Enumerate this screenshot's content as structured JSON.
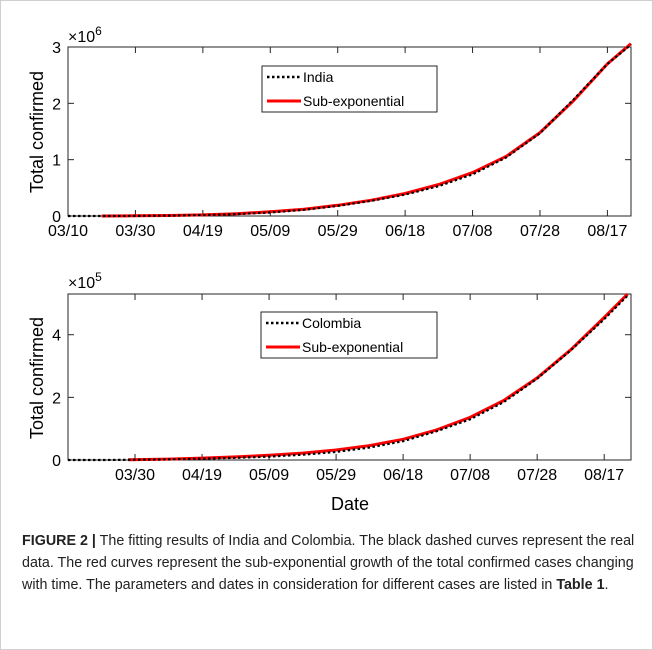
{
  "chart_data": [
    {
      "type": "line",
      "ylabel": "Total confirmed",
      "xlabel": "",
      "y_exponent_label": "×10",
      "y_exponent": "6",
      "ylim": [
        0,
        3
      ],
      "yticks": [
        0,
        1,
        2,
        3
      ],
      "xticks": [
        "03/10",
        "03/30",
        "04/19",
        "05/09",
        "05/29",
        "06/18",
        "07/08",
        "07/28",
        "08/17"
      ],
      "xlim_days": [
        0,
        167
      ],
      "legend_position": "top-center",
      "series": [
        {
          "name": "India",
          "style": "dotted",
          "color": "#000000",
          "x": [
            "03/10",
            "03/20",
            "03/30",
            "04/09",
            "04/19",
            "04/29",
            "05/09",
            "05/19",
            "05/29",
            "06/08",
            "06/18",
            "06/28",
            "07/08",
            "07/18",
            "07/28",
            "08/07",
            "08/17",
            "08/24"
          ],
          "y": [
            5e-05,
            0.0002,
            0.0011,
            0.0064,
            0.016,
            0.033,
            0.063,
            0.11,
            0.18,
            0.27,
            0.38,
            0.53,
            0.74,
            1.04,
            1.47,
            2.07,
            2.7,
            3.04
          ]
        },
        {
          "name": "Sub-exponential",
          "style": "solid",
          "color": "#ff0000",
          "x": [
            "03/20",
            "03/30",
            "04/09",
            "04/19",
            "04/29",
            "05/09",
            "05/19",
            "05/29",
            "06/08",
            "06/18",
            "06/28",
            "07/08",
            "07/18",
            "07/28",
            "08/07",
            "08/17",
            "08/24"
          ],
          "y": [
            0.0005,
            0.003,
            0.009,
            0.02,
            0.04,
            0.075,
            0.12,
            0.19,
            0.28,
            0.4,
            0.56,
            0.77,
            1.06,
            1.48,
            2.05,
            2.7,
            3.06
          ]
        }
      ]
    },
    {
      "type": "line",
      "ylabel": "Total confirmed",
      "xlabel": "Date",
      "y_exponent_label": "×10",
      "y_exponent": "5",
      "ylim": [
        0,
        5.3
      ],
      "yticks": [
        0,
        2,
        4
      ],
      "xticks": [
        "03/30",
        "04/19",
        "05/09",
        "05/29",
        "06/18",
        "07/08",
        "07/28",
        "08/17"
      ],
      "xlim_days": [
        0,
        168
      ],
      "legend_position": "top-center",
      "series": [
        {
          "name": "Colombia",
          "style": "dotted",
          "color": "#000000",
          "x": [
            "03/10",
            "03/20",
            "03/28",
            "04/09",
            "04/19",
            "04/29",
            "05/09",
            "05/19",
            "05/29",
            "06/08",
            "06/18",
            "06/28",
            "07/08",
            "07/18",
            "07/28",
            "08/07",
            "08/17",
            "08/24"
          ],
          "y": [
            0.0001,
            0.001,
            0.005,
            0.02,
            0.04,
            0.07,
            0.11,
            0.17,
            0.26,
            0.4,
            0.6,
            0.92,
            1.3,
            1.85,
            2.6,
            3.5,
            4.5,
            5.25
          ]
        },
        {
          "name": "Sub-exponential",
          "style": "solid",
          "color": "#ff0000",
          "x": [
            "03/28",
            "04/09",
            "04/19",
            "04/29",
            "05/09",
            "05/19",
            "05/29",
            "06/08",
            "06/18",
            "06/28",
            "07/08",
            "07/18",
            "07/28",
            "08/07",
            "08/17",
            "08/24"
          ],
          "y": [
            0.01,
            0.03,
            0.06,
            0.1,
            0.15,
            0.22,
            0.32,
            0.46,
            0.66,
            0.96,
            1.36,
            1.9,
            2.62,
            3.52,
            4.55,
            5.3
          ]
        }
      ]
    }
  ],
  "caption": {
    "label": "FIGURE 2 |",
    "text": " The fitting results of India and Colombia. The black dashed curves represent the real data. The red curves represent the sub-exponential growth of the total confirmed cases changing with time. The parameters and dates in consideration for different cases are listed in ",
    "table_ref": "Table 1",
    "end": "."
  }
}
